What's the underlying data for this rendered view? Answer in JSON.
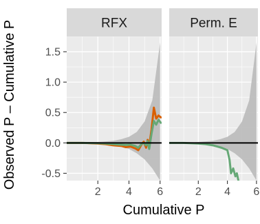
{
  "chart_data": {
    "type": "line",
    "xlabel": "Cumulative P",
    "ylabel": "Observed P – Cumulative P",
    "xlim": [
      0,
      6.1
    ],
    "ylim": [
      -0.62,
      1.75
    ],
    "x_ticks": [
      2,
      4,
      6
    ],
    "y_ticks": [
      -0.5,
      0.0,
      0.5,
      1.0,
      1.5
    ],
    "y_tick_labels": [
      "-0.5",
      "0.0",
      "0.5",
      "1.0",
      "1.5"
    ],
    "grid": true,
    "reference_line": 0,
    "colors": {
      "panel_bg": "#ebebeb",
      "strip_bg": "#d9d9d9",
      "grid": "#ffffff",
      "band": "#bdbdbd",
      "zero_line": "#000000",
      "series_orange": "#d95f02",
      "series_green": "#66a876"
    },
    "panels": [
      {
        "title": "RFX",
        "band": {
          "x": [
            0.0,
            1.0,
            2.0,
            3.0,
            3.5,
            4.0,
            4.5,
            5.0,
            5.5,
            6.0
          ],
          "upper": [
            0.01,
            0.01,
            0.015,
            0.035,
            0.06,
            0.1,
            0.18,
            0.35,
            0.7,
            1.65
          ],
          "lower": [
            -0.01,
            -0.01,
            -0.015,
            -0.035,
            -0.06,
            -0.1,
            -0.17,
            -0.27,
            -0.42,
            -0.62
          ]
        },
        "series": [
          {
            "color": "#d95f02",
            "x": [
              0.0,
              1.0,
              2.0,
              2.5,
              3.0,
              3.5,
              3.8,
              4.1,
              4.4,
              4.6,
              4.8,
              4.95,
              5.1,
              5.2,
              5.3,
              5.45,
              5.6,
              5.75,
              5.9,
              6.05
            ],
            "y": [
              0.0,
              0.0,
              -0.01,
              -0.02,
              -0.04,
              -0.05,
              -0.07,
              -0.06,
              -0.09,
              -0.12,
              -0.03,
              0.02,
              -0.08,
              0.05,
              -0.05,
              0.22,
              0.58,
              0.4,
              0.45,
              0.42
            ]
          },
          {
            "color": "#66a876",
            "x": [
              0.0,
              1.0,
              2.0,
              2.5,
              3.0,
              3.5,
              3.8,
              4.1,
              4.4,
              4.6,
              4.8,
              4.95,
              5.1,
              5.2,
              5.3,
              5.45,
              5.6,
              5.75,
              5.9,
              6.05
            ],
            "y": [
              0.0,
              0.0,
              -0.005,
              -0.01,
              -0.02,
              -0.03,
              -0.035,
              -0.03,
              -0.05,
              -0.08,
              -0.02,
              0.0,
              -0.04,
              0.03,
              -0.1,
              0.15,
              0.36,
              0.3,
              0.38,
              0.33
            ]
          }
        ]
      },
      {
        "title": "Perm. E",
        "band": {
          "x": [
            0.0,
            1.0,
            2.0,
            3.0,
            3.5,
            4.0,
            4.5,
            5.0,
            5.5,
            6.0
          ],
          "upper": [
            0.01,
            0.01,
            0.015,
            0.035,
            0.06,
            0.1,
            0.18,
            0.35,
            0.7,
            1.65
          ],
          "lower": [
            -0.01,
            -0.01,
            -0.015,
            -0.035,
            -0.06,
            -0.1,
            -0.17,
            -0.27,
            -0.42,
            -0.62
          ]
        },
        "series": [
          {
            "color": "#66a876",
            "x": [
              0.0,
              1.0,
              2.0,
              2.5,
              3.0,
              3.3,
              3.6,
              3.8,
              4.0,
              4.15,
              4.25,
              4.4,
              4.55,
              4.65,
              4.9
            ],
            "y": [
              0.0,
              0.0,
              -0.01,
              -0.02,
              -0.04,
              -0.06,
              -0.08,
              -0.1,
              -0.12,
              -0.28,
              -0.5,
              -0.42,
              -0.55,
              -0.5,
              -0.78
            ]
          }
        ]
      }
    ]
  }
}
